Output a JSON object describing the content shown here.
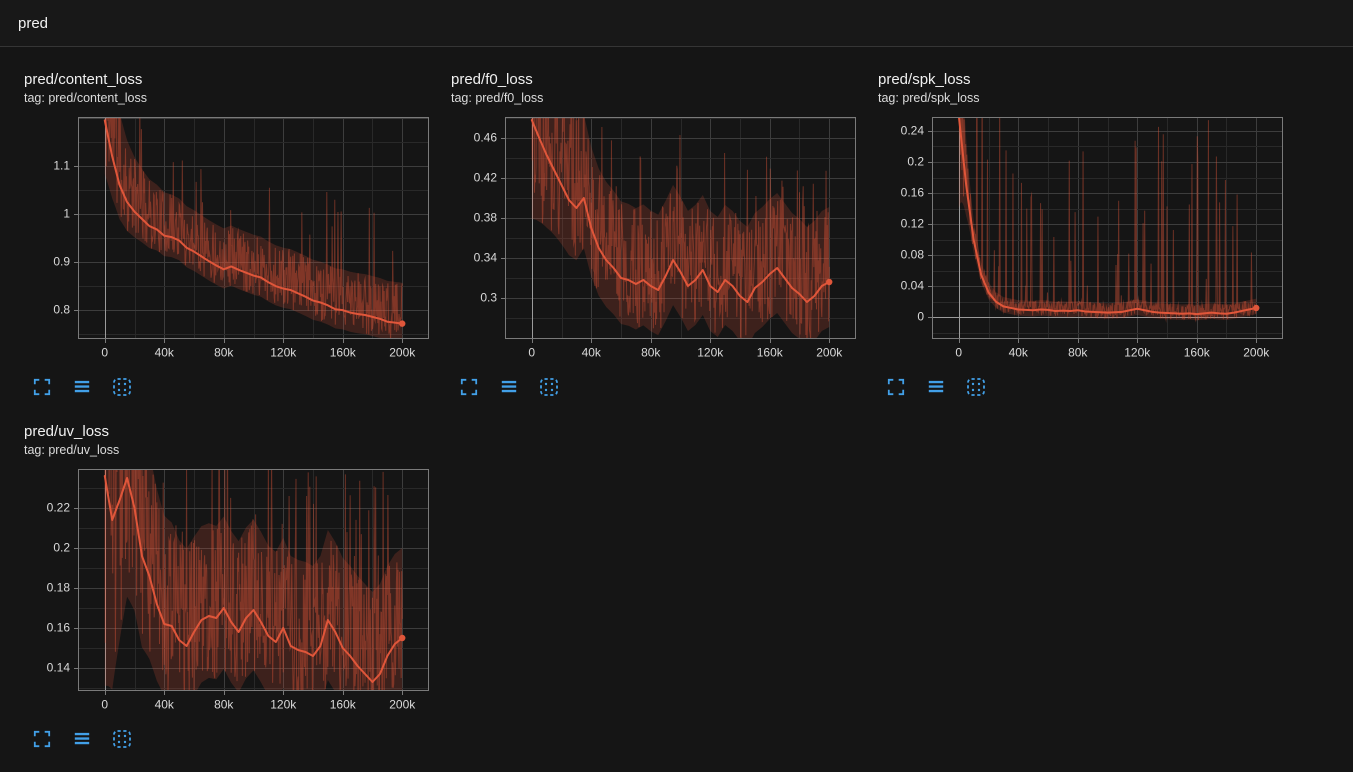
{
  "header": {
    "title": "pred"
  },
  "colors": {
    "background": "#151515",
    "accent_blue": "#42a0e8",
    "series_orange": "#e0563a",
    "grid_major": "#3d3d3d",
    "grid_minor": "#292929",
    "axis_border": "#7a7a7a",
    "zero_line": "#9b9b9b",
    "tick_label": "#d9d9d9"
  },
  "toolbar": {
    "icons": [
      "expand-icon",
      "data-table-icon",
      "fit-domain-icon"
    ]
  },
  "chart_data": [
    {
      "type": "line",
      "title": "pred/content_loss",
      "tag_label": "tag: pred/content_loss",
      "color": "#e0563a",
      "xlim": [
        -18000,
        218000
      ],
      "ylim": [
        0.74,
        1.202
      ],
      "x_ticks": [
        0,
        40000,
        80000,
        120000,
        160000,
        200000
      ],
      "x_tick_labels": [
        "0",
        "40k",
        "80k",
        "120k",
        "160k",
        "200k"
      ],
      "y_ticks": [
        0.8,
        0.9,
        1.0,
        1.1
      ],
      "y_tick_labels": [
        "0.8",
        "0.9",
        "1",
        "1.1"
      ],
      "series": {
        "name": "smoothed",
        "x0": 0,
        "dx": 5000,
        "y": [
          1.195,
          1.12,
          1.06,
          1.025,
          1.005,
          0.99,
          0.975,
          0.968,
          0.955,
          0.952,
          0.945,
          0.93,
          0.922,
          0.912,
          0.902,
          0.893,
          0.885,
          0.891,
          0.884,
          0.878,
          0.872,
          0.868,
          0.858,
          0.85,
          0.845,
          0.842,
          0.835,
          0.828,
          0.82,
          0.816,
          0.81,
          0.802,
          0.8,
          0.795,
          0.792,
          0.79,
          0.786,
          0.782,
          0.776,
          0.774,
          0.772
        ]
      },
      "noise": {
        "seed": 11,
        "band_up": 0.085,
        "band_down": 0.04,
        "spike_amp": 0.24,
        "spike_prob": 0.06,
        "boost": 1.8,
        "tau": 12000
      }
    },
    {
      "type": "line",
      "title": "pred/f0_loss",
      "tag_label": "tag: pred/f0_loss",
      "color": "#e0563a",
      "xlim": [
        -18000,
        218000
      ],
      "ylim": [
        0.259,
        0.481
      ],
      "x_ticks": [
        0,
        40000,
        80000,
        120000,
        160000,
        200000
      ],
      "x_tick_labels": [
        "0",
        "40k",
        "80k",
        "120k",
        "160k",
        "200k"
      ],
      "y_ticks": [
        0.3,
        0.34,
        0.38,
        0.42,
        0.46
      ],
      "y_tick_labels": [
        "0.3",
        "0.34",
        "0.38",
        "0.42",
        "0.46"
      ],
      "series": {
        "name": "smoothed",
        "x0": 0,
        "dx": 5000,
        "y": [
          0.478,
          0.46,
          0.443,
          0.428,
          0.413,
          0.398,
          0.39,
          0.4,
          0.37,
          0.35,
          0.338,
          0.33,
          0.32,
          0.318,
          0.314,
          0.318,
          0.312,
          0.308,
          0.322,
          0.338,
          0.326,
          0.312,
          0.318,
          0.328,
          0.312,
          0.306,
          0.318,
          0.312,
          0.302,
          0.296,
          0.31,
          0.316,
          0.324,
          0.33,
          0.32,
          0.31,
          0.304,
          0.296,
          0.302,
          0.312,
          0.316
        ]
      },
      "noise": {
        "seed": 22,
        "band_up": 0.075,
        "band_down": 0.045,
        "spike_amp": 0.14,
        "spike_prob": 0.1,
        "boost": 1.2,
        "tau": 15000
      }
    },
    {
      "type": "line",
      "title": "pred/spk_loss",
      "tag_label": "tag: pred/spk_loss",
      "color": "#e0563a",
      "xlim": [
        -18000,
        218000
      ],
      "ylim": [
        -0.028,
        0.258
      ],
      "x_ticks": [
        0,
        40000,
        80000,
        120000,
        160000,
        200000
      ],
      "x_tick_labels": [
        "0",
        "40k",
        "80k",
        "120k",
        "160k",
        "200k"
      ],
      "y_ticks": [
        0,
        0.04,
        0.08,
        0.12,
        0.16,
        0.2,
        0.24
      ],
      "y_tick_labels": [
        "0",
        "0.04",
        "0.08",
        "0.12",
        "0.16",
        "0.2",
        "0.24"
      ],
      "series": {
        "name": "smoothed",
        "x0": 0,
        "dx": 5000,
        "y": [
          0.26,
          0.17,
          0.1,
          0.055,
          0.032,
          0.02,
          0.014,
          0.012,
          0.01,
          0.0095,
          0.009,
          0.01,
          0.0095,
          0.008,
          0.0085,
          0.008,
          0.009,
          0.0075,
          0.007,
          0.0065,
          0.006,
          0.0065,
          0.007,
          0.009,
          0.011,
          0.009,
          0.007,
          0.006,
          0.0055,
          0.005,
          0.0045,
          0.005,
          0.004,
          0.005,
          0.006,
          0.005,
          0.0045,
          0.006,
          0.008,
          0.01,
          0.012
        ]
      },
      "noise": {
        "seed": 33,
        "band_up": 0.012,
        "band_down": 0.008,
        "spike_amp": 0.25,
        "spike_prob": 0.1,
        "boost": 14,
        "tau": 4000
      }
    },
    {
      "type": "line",
      "title": "pred/uv_loss",
      "tag_label": "tag: pred/uv_loss",
      "color": "#e0563a",
      "xlim": [
        -18000,
        218000
      ],
      "ylim": [
        0.1285,
        0.2395
      ],
      "x_ticks": [
        0,
        40000,
        80000,
        120000,
        160000,
        200000
      ],
      "x_tick_labels": [
        "0",
        "40k",
        "80k",
        "120k",
        "160k",
        "200k"
      ],
      "y_ticks": [
        0.14,
        0.16,
        0.18,
        0.2,
        0.22
      ],
      "y_tick_labels": [
        "0.14",
        "0.16",
        "0.18",
        "0.2",
        "0.22"
      ],
      "series": {
        "name": "smoothed",
        "x0": 0,
        "dx": 5000,
        "y": [
          0.236,
          0.214,
          0.224,
          0.235,
          0.22,
          0.196,
          0.186,
          0.172,
          0.162,
          0.161,
          0.154,
          0.151,
          0.158,
          0.164,
          0.166,
          0.165,
          0.17,
          0.163,
          0.158,
          0.165,
          0.169,
          0.163,
          0.156,
          0.153,
          0.16,
          0.151,
          0.149,
          0.148,
          0.146,
          0.151,
          0.164,
          0.158,
          0.15,
          0.146,
          0.141,
          0.137,
          0.133,
          0.137,
          0.146,
          0.152,
          0.155
        ]
      },
      "noise": {
        "seed": 44,
        "band_up": 0.045,
        "band_down": 0.03,
        "spike_amp": 0.1,
        "spike_prob": 0.12,
        "boost": 2.5,
        "tau": 16000
      }
    }
  ]
}
